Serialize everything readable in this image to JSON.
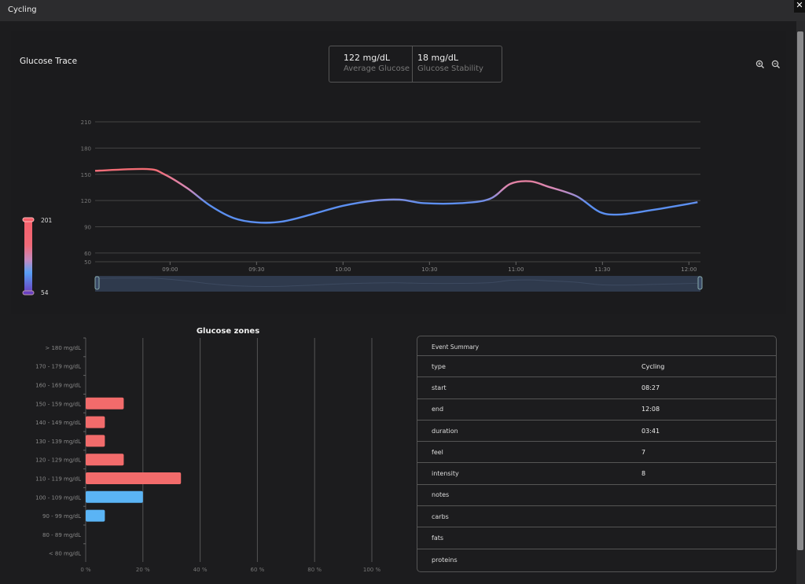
{
  "window": {
    "title": "Cycling",
    "close_icon": "close-icon"
  },
  "trace": {
    "title": "Glucose Trace",
    "stats": [
      {
        "value": "122 mg/dL",
        "label": "Average Glucose"
      },
      {
        "value": "18 mg/dL",
        "label": "Glucose Stability"
      }
    ],
    "zoom_in_icon": "zoom-in-icon",
    "zoom_out_icon": "zoom-out-icon",
    "legend": {
      "max": "201",
      "min": "54",
      "colors": [
        "#f26b73",
        "#e88aa8",
        "#5b9cf0",
        "#6a3fc0"
      ]
    }
  },
  "chart_data": [
    {
      "type": "line",
      "title": "",
      "yticks": [
        "210",
        "180",
        "150",
        "120",
        "90",
        "60",
        "50"
      ],
      "ytick_values": [
        210,
        180,
        150,
        120,
        90,
        60,
        50
      ],
      "ylim": [
        50,
        210
      ],
      "xticks": [
        "09:00",
        "09:30",
        "10:00",
        "10:30",
        "11:00",
        "11:30",
        "12:00"
      ],
      "xlim": [
        "08:34",
        "12:04"
      ],
      "grid": true,
      "color_scale": {
        "min": 54,
        "max": 201,
        "high": "#f26b73",
        "low": "#5b8ff0"
      },
      "x": [
        "08:34",
        "08:52",
        "08:58",
        "09:06",
        "09:14",
        "09:22",
        "09:30",
        "09:39",
        "09:50",
        "10:00",
        "10:11",
        "10:20",
        "10:28",
        "10:41",
        "10:51",
        "10:58",
        "11:05",
        "11:11",
        "11:21",
        "11:29",
        "11:36",
        "11:47",
        "12:03"
      ],
      "y": [
        154,
        156,
        150,
        134,
        114,
        100,
        95,
        96,
        105,
        114,
        120,
        121,
        117,
        117,
        122,
        139,
        142,
        136,
        125,
        107,
        104,
        109,
        118
      ]
    },
    {
      "type": "bar",
      "orientation": "horizontal",
      "title": "Glucose zones",
      "categories": [
        "> 180 mg/dL",
        "170 - 179 mg/dL",
        "160 - 169 mg/dL",
        "150 - 159 mg/dL",
        "140 - 149 mg/dL",
        "130 - 139 mg/dL",
        "120 - 129 mg/dL",
        "110 - 119 mg/dL",
        "100 - 109 mg/dL",
        "90 - 99 mg/dL",
        "80 - 89 mg/dL",
        "< 80 mg/dL"
      ],
      "values": [
        0,
        0,
        0,
        13.3,
        6.7,
        6.7,
        13.3,
        33.3,
        20,
        6.7,
        0,
        0
      ],
      "colors": [
        "#f26b6b",
        "#f26b6b",
        "#f26b6b",
        "#f26b6b",
        "#f26b6b",
        "#f26b6b",
        "#f26b6b",
        "#f26b6b",
        "#5ab4f5",
        "#5ab4f5",
        "#5ab4f5",
        "#5ab4f5"
      ],
      "xticks": [
        "0 %",
        "20 %",
        "40 %",
        "60 %",
        "80 %",
        "100 %"
      ],
      "xlim": [
        0,
        100
      ],
      "grid": true
    }
  ],
  "event_summary": {
    "title": "Event Summary",
    "rows": [
      {
        "key": "type",
        "value": "Cycling"
      },
      {
        "key": "start",
        "value": "08:27"
      },
      {
        "key": "end",
        "value": "12:08"
      },
      {
        "key": "duration",
        "value": "03:41"
      },
      {
        "key": "feel",
        "value": "7"
      },
      {
        "key": "intensity",
        "value": "8"
      },
      {
        "key": "notes",
        "value": ""
      },
      {
        "key": "carbs",
        "value": ""
      },
      {
        "key": "fats",
        "value": ""
      },
      {
        "key": "proteins",
        "value": ""
      }
    ]
  }
}
